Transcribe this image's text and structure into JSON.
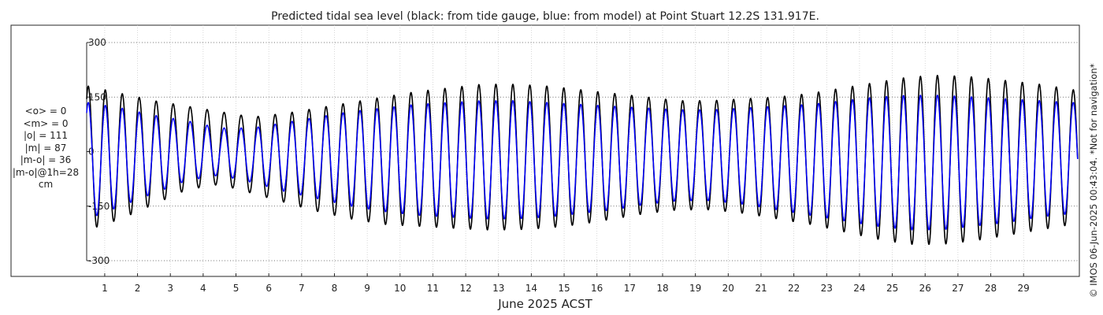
{
  "chart_data": {
    "type": "line",
    "title": "Predicted tidal sea level (black: from tide gauge, blue: from model) at Point Stuart 12.2S 131.917E.",
    "xlabel": "June 2025 ACST",
    "ylabel": "",
    "xlim": [
      0.45,
      30.7
    ],
    "ylim": [
      -320,
      320
    ],
    "yticks": [
      -300,
      -150,
      0,
      150,
      300
    ],
    "xticks": [
      1,
      2,
      3,
      4,
      5,
      6,
      7,
      8,
      9,
      10,
      11,
      12,
      13,
      14,
      15,
      16,
      17,
      18,
      19,
      20,
      21,
      22,
      23,
      24,
      25,
      26,
      27,
      28,
      29
    ],
    "grid": true,
    "series": [
      {
        "color": "#000000",
        "semidiurnal_period_days": 0.5175,
        "x": [
          0.5,
          1.5,
          2.5,
          3.5,
          4.5,
          5.5,
          6.5,
          7.5,
          8.5,
          9.5,
          10.5,
          11.5,
          12.5,
          13.5,
          14.5,
          15.5,
          16.5,
          17.5,
          18.5,
          19.5,
          20.5,
          21.5,
          22.5,
          23.5,
          24.5,
          25.5,
          26.5,
          27.5,
          28.5,
          29.5,
          30.5
        ],
        "high_water": [
          180,
          160,
          140,
          125,
          110,
          95,
          105,
          120,
          135,
          150,
          165,
          175,
          185,
          185,
          180,
          170,
          160,
          150,
          140,
          140,
          145,
          150,
          160,
          175,
          190,
          205,
          210,
          205,
          195,
          185,
          170
        ],
        "low_water": [
          -215,
          -185,
          -145,
          -105,
          -90,
          -115,
          -140,
          -165,
          -185,
          -200,
          -205,
          -210,
          -215,
          -215,
          -210,
          -200,
          -185,
          -170,
          -160,
          -160,
          -170,
          -185,
          -200,
          -220,
          -240,
          -255,
          -255,
          -245,
          -230,
          -215,
          -200
        ]
      },
      {
        "color": "#0000ff",
        "semidiurnal_period_days": 0.5175,
        "x": [
          0.5,
          1.5,
          2.5,
          3.5,
          4.5,
          5.5,
          6.5,
          7.5,
          8.5,
          9.5,
          10.5,
          11.5,
          12.5,
          13.5,
          14.5,
          15.5,
          16.5,
          17.5,
          18.5,
          19.5,
          20.5,
          21.5,
          22.5,
          23.5,
          24.5,
          25.5,
          26.5,
          27.5,
          28.5,
          29.5,
          30.5
        ],
        "high_water": [
          135,
          120,
          100,
          85,
          65,
          65,
          80,
          95,
          110,
          120,
          130,
          135,
          140,
          140,
          135,
          130,
          125,
          120,
          115,
          115,
          120,
          125,
          130,
          140,
          150,
          155,
          155,
          150,
          145,
          140,
          135
        ],
        "low_water": [
          -185,
          -150,
          -115,
          -80,
          -65,
          -85,
          -110,
          -130,
          -150,
          -165,
          -175,
          -180,
          -185,
          -185,
          -180,
          -170,
          -160,
          -145,
          -135,
          -135,
          -145,
          -160,
          -175,
          -190,
          -205,
          -215,
          -215,
          -205,
          -195,
          -180,
          -170
        ]
      }
    ]
  },
  "stats": {
    "mean_obs": "<o> = 0",
    "mean_model": "<m> = 0",
    "abs_obs": "|o| = 111",
    "abs_model": "|m| = 87",
    "abs_diff": "|m-o| = 36",
    "abs_diff_1h": "|m-o|@1h=28",
    "unit": "cm"
  },
  "watermark": "© IMOS 06-Jun-2025 00:43:04. *Not for navigation*"
}
